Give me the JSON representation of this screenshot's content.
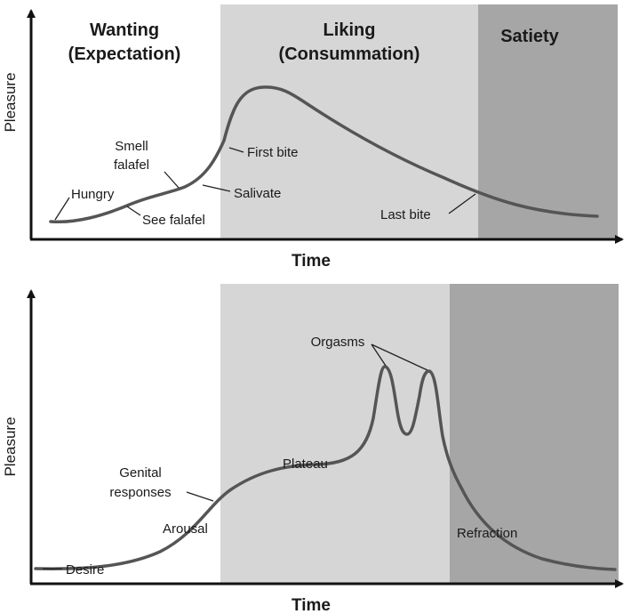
{
  "top_panel": {
    "phase_wanting_line1": "Wanting",
    "phase_wanting_line2": "(Expectation)",
    "phase_liking_line1": "Liking",
    "phase_liking_line2": "(Consummation)",
    "phase_satiety": "Satiety",
    "ylabel": "Pleasure",
    "xlabel": "Time",
    "annotations": {
      "hungry": "Hungry",
      "smell_line1": "Smell",
      "smell_line2": "falafel",
      "see_falafel": "See falafel",
      "salivate": "Salivate",
      "first_bite": "First bite",
      "last_bite": "Last bite"
    }
  },
  "bottom_panel": {
    "ylabel": "Pleasure",
    "xlabel": "Time",
    "annotations": {
      "desire": "Desire",
      "arousal": "Arousal",
      "genital_line1": "Genital",
      "genital_line2": "responses",
      "plateau": "Plateau",
      "orgasms": "Orgasms",
      "refraction": "Refraction"
    }
  },
  "colors": {
    "band_light": "#d6d6d6",
    "band_dark": "#a6a6a6",
    "curve": "#555555",
    "axis": "#111111"
  }
}
